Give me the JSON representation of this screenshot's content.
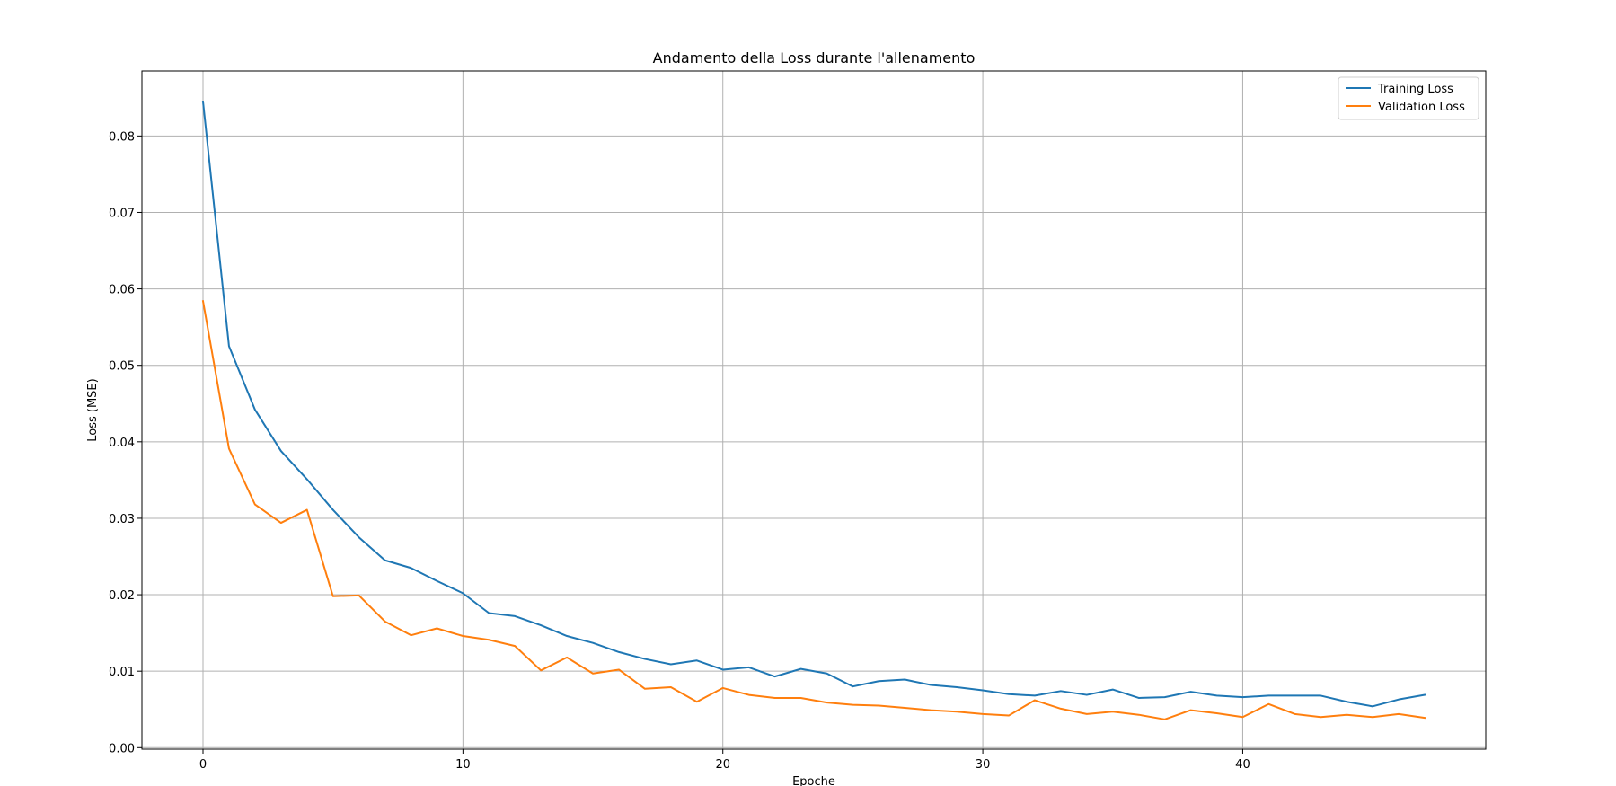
{
  "chart_data": {
    "type": "line",
    "title": "Andamento della Loss durante l'allenamento",
    "xlabel": "Epoche",
    "ylabel": "Loss (MSE)",
    "xlim": [
      -2.35,
      49.35
    ],
    "ylim": [
      -0.0002,
      0.0885
    ],
    "xticks": [
      0,
      10,
      20,
      30,
      40
    ],
    "xtick_labels": [
      "0",
      "10",
      "20",
      "30",
      "40"
    ],
    "yticks": [
      0.0,
      0.01,
      0.02,
      0.03,
      0.04,
      0.05,
      0.06,
      0.07,
      0.08
    ],
    "ytick_labels": [
      "0.00",
      "0.01",
      "0.02",
      "0.03",
      "0.04",
      "0.05",
      "0.06",
      "0.07",
      "0.08"
    ],
    "grid": true,
    "legend_position": "top-right",
    "x": [
      0,
      1,
      2,
      3,
      4,
      5,
      6,
      7,
      8,
      9,
      10,
      11,
      12,
      13,
      14,
      15,
      16,
      17,
      18,
      19,
      20,
      21,
      22,
      23,
      24,
      25,
      26,
      27,
      28,
      29,
      30,
      31,
      32,
      33,
      34,
      35,
      36,
      37,
      38,
      39,
      40,
      41,
      42,
      43,
      44,
      45,
      46,
      47
    ],
    "series": [
      {
        "name": "Training Loss",
        "color": "#1f77b4",
        "values": [
          0.0845,
          0.0525,
          0.0442,
          0.0388,
          0.0351,
          0.0311,
          0.0275,
          0.0245,
          0.0235,
          0.0218,
          0.0202,
          0.0176,
          0.0172,
          0.016,
          0.0146,
          0.0137,
          0.0125,
          0.0116,
          0.0109,
          0.0114,
          0.0102,
          0.0105,
          0.0093,
          0.0103,
          0.0097,
          0.008,
          0.0087,
          0.0089,
          0.0082,
          0.0079,
          0.0075,
          0.007,
          0.0068,
          0.0074,
          0.0069,
          0.0076,
          0.0065,
          0.0066,
          0.0073,
          0.0068,
          0.0066,
          0.0068,
          0.0068,
          0.0068,
          0.006,
          0.0054,
          0.0063,
          0.0069
        ]
      },
      {
        "name": "Validation Loss",
        "color": "#ff7f0e",
        "values": [
          0.0584,
          0.0391,
          0.0318,
          0.0294,
          0.0311,
          0.0198,
          0.0199,
          0.0165,
          0.0147,
          0.0156,
          0.0146,
          0.0141,
          0.0133,
          0.0101,
          0.0118,
          0.0097,
          0.0102,
          0.0077,
          0.0079,
          0.006,
          0.0078,
          0.0069,
          0.0065,
          0.0065,
          0.0059,
          0.0056,
          0.0055,
          0.0052,
          0.0049,
          0.0047,
          0.0044,
          0.0042,
          0.0062,
          0.0051,
          0.0044,
          0.0047,
          0.0043,
          0.0037,
          0.0049,
          0.0045,
          0.004,
          0.0057,
          0.0044,
          0.004,
          0.0043,
          0.004,
          0.0044,
          0.0039
        ]
      }
    ]
  }
}
